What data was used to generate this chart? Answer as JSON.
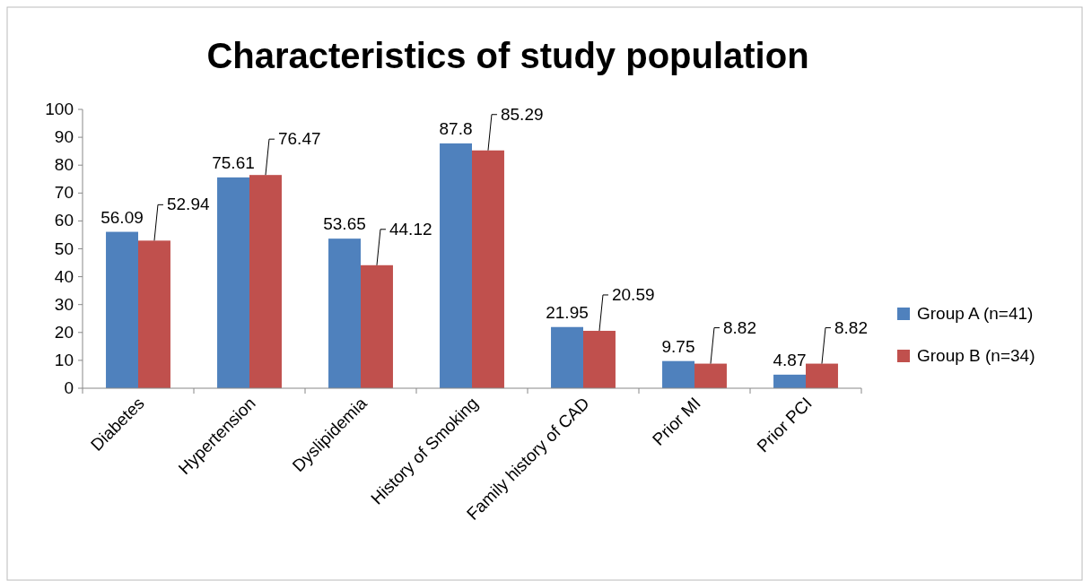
{
  "chart_data": {
    "type": "bar",
    "title": "Characteristics of study population",
    "categories": [
      "Diabetes",
      "Hypertension",
      "Dyslipidemia",
      "History of Smoking",
      "Family history of CAD",
      "Prior MI",
      "Prior PCI"
    ],
    "series": [
      {
        "name": "Group A (n=41)",
        "color": "#4f81bd",
        "values": [
          56.09,
          75.61,
          53.65,
          87.8,
          21.95,
          9.75,
          4.87
        ]
      },
      {
        "name": "Group B (n=34)",
        "color": "#c0504d",
        "values": [
          52.94,
          76.47,
          44.12,
          85.29,
          20.59,
          8.82,
          8.82
        ]
      }
    ],
    "ylim": [
      0,
      100
    ],
    "yticks": [
      0,
      10,
      20,
      30,
      40,
      50,
      60,
      70,
      80,
      90,
      100
    ],
    "data_labels": true,
    "legend": "right",
    "grid": false
  }
}
